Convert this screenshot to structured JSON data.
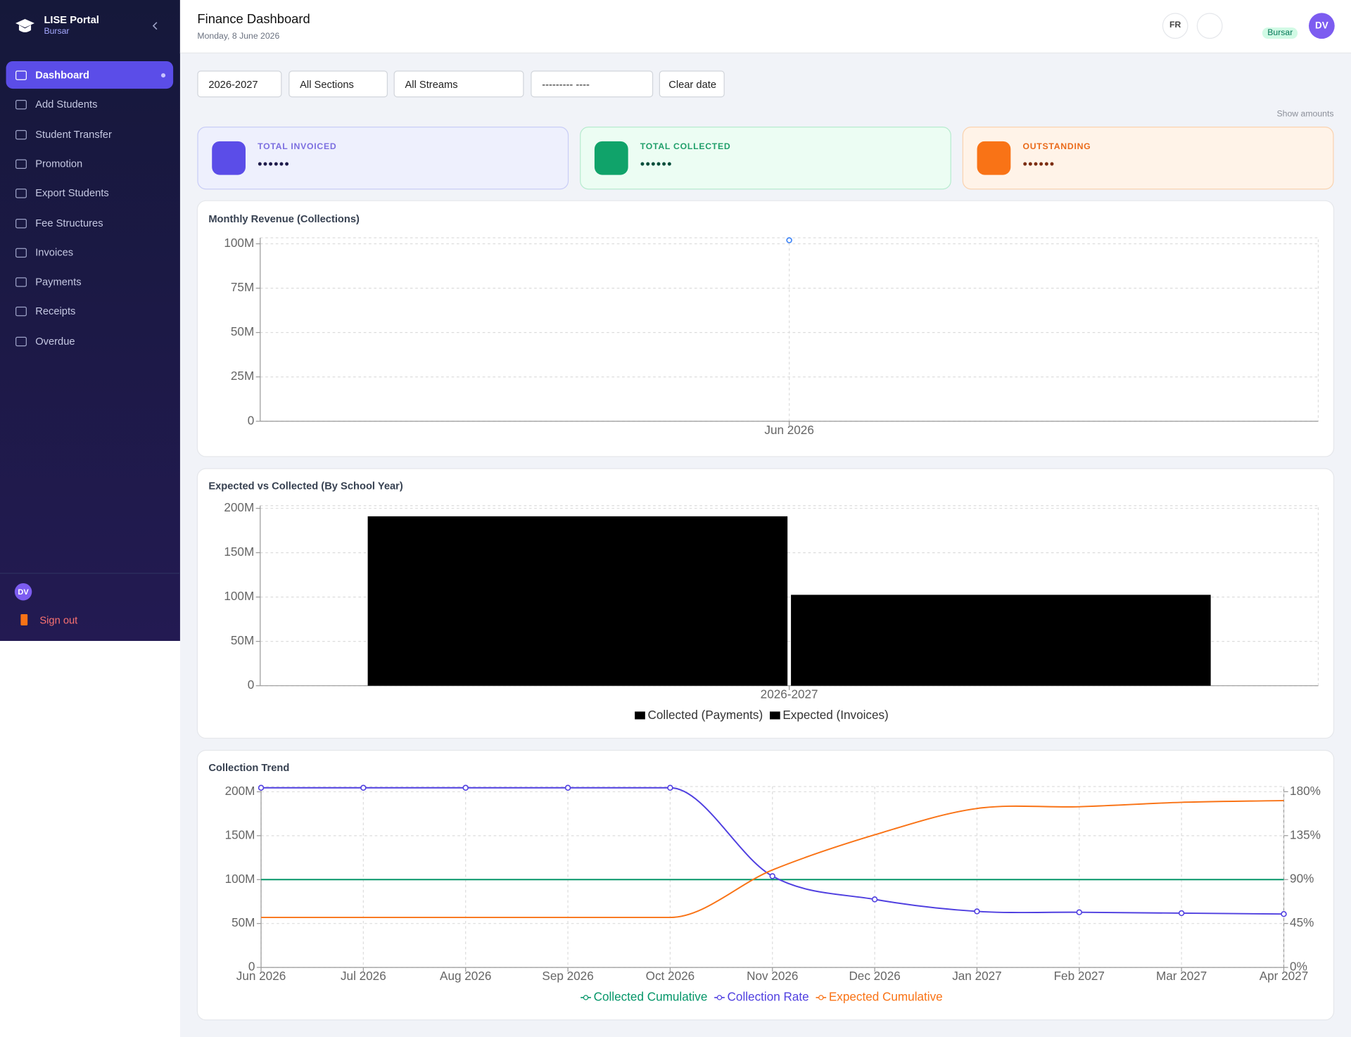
{
  "sidebar": {
    "brand": "LISE Portal",
    "role": "Bursar",
    "nav": [
      "Dashboard",
      "Add Students",
      "Student Transfer",
      "Promotion",
      "Export Students",
      "Fee Structures",
      "Invoices",
      "Payments",
      "Receipts",
      "Overdue"
    ],
    "user_initials": "DV",
    "sign_out": "Sign out"
  },
  "header": {
    "title": "Finance Dashboard",
    "date": "Monday, 8 June 2026",
    "language": "FR",
    "role_badge": "Bursar",
    "avatar": "DV"
  },
  "filters": {
    "year": "2026-2027",
    "section": "All Sections",
    "stream": "All Streams",
    "date_placeholder": "--------- ----",
    "clear": "Clear date"
  },
  "show_amounts": "Show amounts",
  "cards": [
    {
      "label": "TOTAL INVOICED",
      "value": "••••••"
    },
    {
      "label": "TOTAL COLLECTED",
      "value": "••••••"
    },
    {
      "label": "OUTSTANDING",
      "value": "••••••"
    }
  ],
  "chart_data": [
    {
      "type": "line",
      "title": "Monthly Revenue (Collections)",
      "categories": [
        "Jun 2026"
      ],
      "values": [
        102000000
      ],
      "color": "#3b82f6",
      "markers": true,
      "ylim": [
        0,
        103400000
      ],
      "yticks": [
        0,
        {
          "value": 25000000,
          "label": "25M"
        },
        {
          "value": 50000000,
          "label": "50M"
        },
        {
          "value": 75000000,
          "label": "75M"
        },
        {
          "value": 100000000,
          "label": "100M"
        }
      ],
      "grid": true
    },
    {
      "type": "bar",
      "title": "Expected vs Collected (By School Year)",
      "categories": [
        "2026-2027"
      ],
      "series": [
        {
          "name": "Collected (Payments)",
          "color": "#000000",
          "values": [
            191000000
          ]
        },
        {
          "name": "Expected (Invoices)",
          "color": "#000000",
          "values": [
            102500000
          ]
        }
      ],
      "ylim": [
        0,
        203000000
      ],
      "yticks": [
        0,
        {
          "value": 50000000,
          "label": "50M"
        },
        {
          "value": 100000000,
          "label": "100M"
        },
        {
          "value": 150000000,
          "label": "150M"
        },
        {
          "value": 200000000,
          "label": "200M"
        }
      ],
      "grid": true
    },
    {
      "type": "line",
      "title": "Collection Trend",
      "categories": [
        "Jun 2026",
        "Jul 2026",
        "Aug 2026",
        "Sep 2026",
        "Oct 2026",
        "Nov 2026",
        "Dec 2026",
        "Jan 2027",
        "Feb 2027",
        "Mar 2027",
        "Apr 2027"
      ],
      "series": [
        {
          "name": "Collected Cumulative",
          "color": "#059669",
          "markers": false,
          "values": [
            100000000,
            100000000,
            100000000,
            100000000,
            100000000,
            100000000,
            100000000,
            100000000,
            100000000,
            100000000,
            100000000
          ]
        },
        {
          "name": "Collection Rate",
          "color": "#4f3fe0",
          "markers": true,
          "axis": "y2",
          "values": [
            184,
            184,
            184,
            184,
            184,
            93.5,
            69.7,
            57.4,
            56.5,
            55.6,
            54.7
          ]
        },
        {
          "name": "Expected Cumulative",
          "color": "#f97316",
          "markers": false,
          "values": [
            56900000,
            56900000,
            56900000,
            56900000,
            56900000,
            111000000,
            151000000,
            181000000,
            183000000,
            188000000,
            190000000
          ]
        }
      ],
      "ylim": [
        0,
        206000000
      ],
      "yticks": [
        0,
        {
          "value": 50000000,
          "label": "50M"
        },
        {
          "value": 100000000,
          "label": "100M"
        },
        {
          "value": 150000000,
          "label": "150M"
        },
        {
          "value": 200000000,
          "label": "200M"
        }
      ],
      "y2lim": [
        0,
        185.3
      ],
      "y2ticks": [
        {
          "value": 0,
          "label": "0%"
        },
        {
          "value": 45,
          "label": "45%"
        },
        {
          "value": 90,
          "label": "90%"
        },
        {
          "value": 135,
          "label": "135%"
        },
        {
          "value": 180,
          "label": "180%"
        }
      ],
      "grid": true
    }
  ]
}
